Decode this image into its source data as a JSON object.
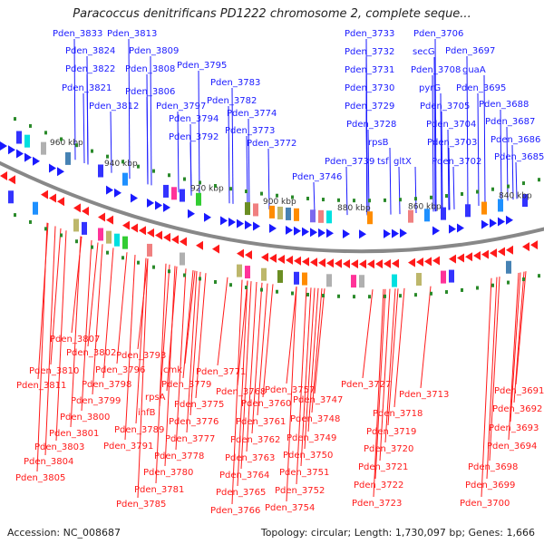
{
  "title": "Paracoccus denitrificans PD1222 chromosome 2, complete seque...",
  "footer": {
    "accession": "Accession: NC_008687",
    "summary": "Topology: circular; Length: 1,730,097 bp; Genes: 1,666"
  },
  "colors": {
    "forward": "#1a1aff",
    "reverse": "#ff1a1a",
    "backbone": "#888888",
    "tick": "#2a8a2a"
  },
  "ticks": [
    "960 kbp",
    "940 kbp",
    "920 kbp",
    "900 kbp",
    "880 kbp",
    "860 kbp",
    "840 kbp"
  ],
  "forward_labels": [
    "Pden_3833",
    "Pden_3824",
    "Pden_3822",
    "Pden_3821",
    "Pden_3813",
    "Pden_3809",
    "Pden_3808",
    "Pden_3806",
    "Pden_3812",
    "Pden_3795",
    "Pden_3797",
    "Pden_3794",
    "Pden_3792",
    "Pden_3783",
    "Pden_3782",
    "Pden_3774",
    "Pden_3773",
    "Pden_3772",
    "Pden_3746",
    "Pden_3739",
    "Pden_3733",
    "Pden_3732",
    "Pden_3731",
    "Pden_3730",
    "Pden_3729",
    "Pden_3728",
    "rpsB",
    "tsf",
    "gltX",
    "Pden_3706",
    "secG",
    "Pden_3708",
    "pyrG",
    "Pden_3705",
    "Pden_3704",
    "Pden_3703",
    "Pden_3702",
    "Pden_3697",
    "guaA",
    "Pden_3695",
    "Pden_3688",
    "Pden_3687",
    "Pden_3686",
    "Pden_3685"
  ],
  "reverse_labels": [
    "Pden_3807",
    "Pden_3802",
    "Pden_3810",
    "Pden_3811",
    "Pden_3796",
    "Pden_3798",
    "Pden_3799",
    "Pden_3800",
    "Pden_3801",
    "Pden_3803",
    "Pden_3804",
    "Pden_3805",
    "Pden_3793",
    "cmk",
    "Pden_3779",
    "rpsA",
    "ihfB",
    "Pden_3789",
    "Pden_3791",
    "Pden_3775",
    "Pden_3776",
    "Pden_3777",
    "Pden_3778",
    "Pden_3780",
    "Pden_3781",
    "Pden_3785",
    "Pden_3771",
    "Pden_3768",
    "Pden_3760",
    "Pden_3761",
    "Pden_3762",
    "Pden_3763",
    "Pden_3764",
    "Pden_3765",
    "Pden_3766",
    "Pden_3757",
    "Pden_3747",
    "Pden_3748",
    "Pden_3749",
    "Pden_3750",
    "Pden_3751",
    "Pden_3752",
    "Pden_3754",
    "Pden_3727",
    "Pden_3713",
    "Pden_3718",
    "Pden_3719",
    "Pden_3720",
    "Pden_3721",
    "Pden_3722",
    "Pden_3723",
    "Pden_3691",
    "Pden_3692",
    "Pden_3693",
    "Pden_3694",
    "Pden_3698",
    "Pden_3699",
    "Pden_3700"
  ]
}
